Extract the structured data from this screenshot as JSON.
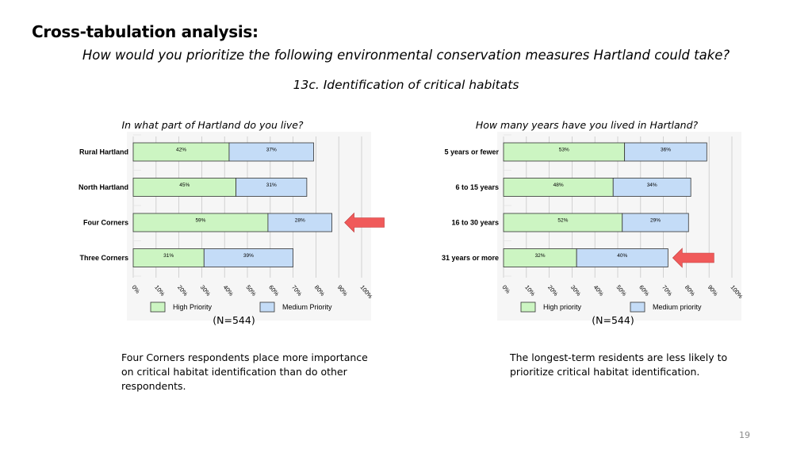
{
  "slide": {
    "title": "Cross-tabulation analysis:",
    "question": "How would you prioritize the following environmental conservation measures Hartland could take?",
    "subheading": "13c. Identification of critical habitats",
    "page_number": "19"
  },
  "colors": {
    "high": "#ccf5c2",
    "medium": "#c4dcf7",
    "arrow": "#f05a5a",
    "grid": "#c8c8c8"
  },
  "chart_data": [
    {
      "type": "bar",
      "orientation": "horizontal",
      "stacked": true,
      "title": "In what part of Hartland do you live?",
      "categories": [
        "Rural Hartland",
        "North Hartland",
        "Four Corners",
        "Three Corners"
      ],
      "series": [
        {
          "name": "High Priority",
          "values": [
            42,
            45,
            59,
            31
          ],
          "labels": [
            "42%",
            "45%",
            "59%",
            "31%"
          ]
        },
        {
          "name": "Medium Priority",
          "values": [
            37,
            31,
            28,
            39
          ],
          "labels": [
            "37%",
            "31%",
            "28%",
            "39%"
          ]
        }
      ],
      "xlim": [
        0,
        100
      ],
      "ticks": [
        "0%",
        "10%",
        "20%",
        "30%",
        "40%",
        "50%",
        "60%",
        "70%",
        "80%",
        "90%",
        "100%"
      ],
      "grid": true,
      "legend": "bottom",
      "n_label": "(N=544)",
      "highlight_category": "Four Corners"
    },
    {
      "type": "bar",
      "orientation": "horizontal",
      "stacked": true,
      "title": "How many years have you lived in Hartland?",
      "categories": [
        "5 years or fewer",
        "6 to 15 years",
        "16 to 30 years",
        "31 years or more"
      ],
      "series": [
        {
          "name": "High priority",
          "values": [
            53,
            48,
            52,
            32
          ],
          "labels": [
            "53%",
            "48%",
            "52%",
            "32%"
          ]
        },
        {
          "name": "Medium priority",
          "values": [
            36,
            34,
            29,
            40
          ],
          "labels": [
            "36%",
            "34%",
            "29%",
            "40%"
          ]
        }
      ],
      "xlim": [
        0,
        100
      ],
      "ticks": [
        "0%",
        "10%",
        "20%",
        "30%",
        "40%",
        "50%",
        "60%",
        "70%",
        "80%",
        "90%",
        "100%"
      ],
      "grid": true,
      "legend": "bottom",
      "n_label": "(N=544)",
      "highlight_category": "31 years or more"
    }
  ],
  "notes": [
    "Four Corners respondents place more importance on critical habitat identification than do other respondents.",
    "The longest-term residents are less likely to prioritize critical habitat identification."
  ]
}
